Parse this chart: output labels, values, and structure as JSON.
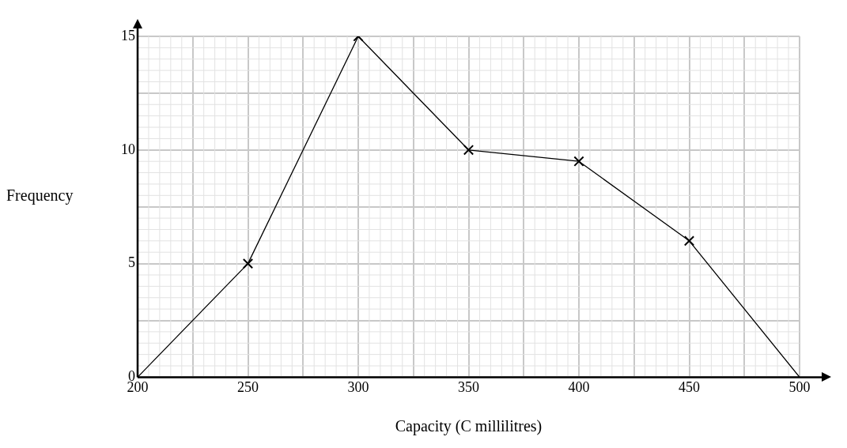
{
  "chart_data": {
    "type": "line",
    "xlabel": "Capacity (C millilitres)",
    "ylabel": "Frequency",
    "series": [
      {
        "color": "#000000",
        "marker": "none",
        "x": [
          200,
          250,
          300,
          350,
          400,
          450,
          500
        ],
        "values": [
          0,
          5,
          15,
          10,
          9.5,
          6,
          0
        ]
      },
      {
        "type": "scatter",
        "color": "#000000",
        "marker": "cross",
        "x": [
          250,
          300,
          350,
          400,
          450
        ],
        "values": [
          5,
          15,
          10,
          9.5,
          6
        ]
      }
    ],
    "xlim": [
      200,
      500
    ],
    "ylim": [
      0,
      15
    ],
    "xticks": [
      200,
      {
        "value": 225,
        "label": null
      },
      250,
      {
        "value": 275,
        "label": null
      },
      300,
      {
        "value": 325,
        "label": null
      },
      350,
      {
        "value": 375,
        "label": null
      },
      400,
      {
        "value": 425,
        "label": null
      },
      450,
      {
        "value": 475,
        "label": null
      },
      500
    ],
    "yticks": [
      0,
      {
        "value": 2.5,
        "label": null
      },
      5,
      {
        "value": 7.5,
        "label": null
      },
      10,
      {
        "value": 12.5,
        "label": null
      },
      15
    ],
    "grid": true
  }
}
